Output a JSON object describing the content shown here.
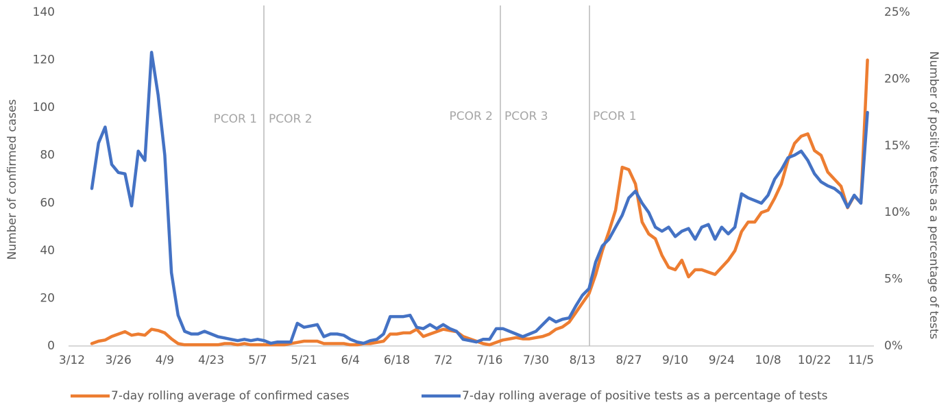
{
  "chart_data": {
    "type": "line",
    "y_label": "Number of confirmed cases",
    "y2_label": "Number of positive tests as a percentage of tests",
    "categories": [
      "3/12",
      null,
      null,
      null,
      null,
      null,
      null,
      "3/26",
      null,
      null,
      null,
      null,
      null,
      null,
      "4/9",
      null,
      null,
      null,
      null,
      null,
      null,
      "4/23",
      null,
      null,
      null,
      null,
      null,
      null,
      "5/7",
      null,
      null,
      null,
      null,
      null,
      null,
      "5/21",
      null,
      null,
      null,
      null,
      null,
      null,
      "6/4",
      null,
      null,
      null,
      null,
      null,
      null,
      "6/18",
      null,
      null,
      null,
      null,
      null,
      null,
      "7/2",
      null,
      null,
      null,
      null,
      null,
      null,
      "7/16",
      null,
      null,
      null,
      null,
      null,
      null,
      "7/30",
      null,
      null,
      null,
      null,
      null,
      null,
      "8/13",
      null,
      null,
      null,
      null,
      null,
      null,
      "8/27",
      null,
      null,
      null,
      null,
      null,
      null,
      "9/10",
      null,
      null,
      null,
      null,
      null,
      null,
      "9/24",
      null,
      null,
      null,
      null,
      null,
      null,
      "10/8",
      null,
      null,
      null,
      null,
      null,
      null,
      "10/22",
      null,
      null,
      null,
      null,
      null,
      null,
      "11/5",
      null,
      null
    ],
    "series": [
      {
        "name": "7-day rolling average of confirmed cases",
        "color": "#ed7d31",
        "axis": "y",
        "values": [
          null,
          null,
          null,
          1,
          2,
          2.5,
          4,
          5,
          6,
          4.5,
          5,
          4.5,
          7,
          6.5,
          5.5,
          3,
          1,
          0.5,
          0.5,
          0.5,
          0.5,
          0.5,
          0.5,
          1,
          1,
          0.5,
          1,
          0.5,
          0.5,
          0.5,
          0.5,
          0.5,
          0.5,
          1,
          1.5,
          2,
          2,
          2,
          1,
          1,
          1,
          1,
          0.5,
          0.5,
          1,
          1,
          1.5,
          2,
          5,
          5,
          5.5,
          5.5,
          7,
          4,
          5,
          6,
          7,
          6.5,
          6,
          4,
          3,
          2,
          1,
          0.5,
          1.5,
          2.5,
          3,
          3.5,
          3,
          3,
          3.5,
          4,
          5,
          7,
          8,
          10,
          14,
          18,
          22,
          30,
          40,
          48,
          57,
          75,
          74,
          68,
          52,
          47,
          45,
          38,
          33,
          32,
          36,
          29,
          32,
          32,
          31,
          30,
          33,
          36,
          40,
          48,
          52,
          52,
          56,
          57,
          62,
          68,
          78,
          85,
          88,
          89,
          82,
          80,
          73,
          70,
          67,
          58,
          63,
          60,
          120,
          null
        ]
      },
      {
        "name": "7-day rolling average of positive tests as a percentage of tests",
        "color": "#4472c4",
        "axis": "y2",
        "values": [
          null,
          null,
          null,
          11.8,
          15.2,
          16.4,
          13.6,
          13.0,
          12.9,
          10.5,
          14.6,
          13.9,
          22.0,
          18.8,
          14.3,
          5.5,
          2.3,
          1.1,
          0.9,
          0.9,
          1.1,
          0.9,
          0.7,
          0.6,
          0.5,
          0.4,
          0.5,
          0.4,
          0.5,
          0.4,
          0.2,
          0.3,
          0.3,
          0.3,
          1.7,
          1.4,
          1.5,
          1.6,
          0.7,
          0.9,
          0.9,
          0.8,
          0.5,
          0.3,
          0.2,
          0.4,
          0.5,
          0.9,
          2.2,
          2.2,
          2.2,
          2.3,
          1.4,
          1.3,
          1.6,
          1.3,
          1.6,
          1.3,
          1.1,
          0.5,
          0.4,
          0.3,
          0.5,
          0.5,
          1.3,
          1.3,
          1.1,
          0.9,
          0.7,
          0.9,
          1.1,
          1.6,
          2.1,
          1.8,
          2.0,
          2.1,
          3.0,
          3.8,
          4.3,
          6.3,
          7.5,
          8.0,
          8.9,
          9.8,
          11.1,
          11.6,
          10.7,
          10.0,
          8.9,
          8.6,
          8.9,
          8.2,
          8.6,
          8.8,
          8.0,
          8.9,
          9.1,
          8.0,
          8.9,
          8.4,
          8.9,
          11.4,
          11.1,
          10.9,
          10.7,
          11.3,
          12.5,
          13.2,
          14.1,
          14.3,
          14.6,
          13.9,
          12.9,
          12.3,
          12.0,
          11.8,
          11.4,
          10.4,
          11.3,
          10.7,
          17.5,
          null
        ]
      }
    ],
    "ylim": [
      0,
      140
    ],
    "yticks": [
      0,
      20,
      40,
      60,
      80,
      100,
      120,
      140
    ],
    "y2lim": [
      0,
      25
    ],
    "y2ticks": [
      {
        "value": 0,
        "label": "0%"
      },
      {
        "value": 5,
        "label": "5%"
      },
      {
        "value": 10,
        "label": "10%"
      },
      {
        "value": 15,
        "label": "15%"
      },
      {
        "value": 20,
        "label": "20%"
      },
      {
        "value": 25,
        "label": "25%"
      }
    ],
    "annotations": [
      "PCOR 1",
      "PCOR 2",
      "PCOR 2",
      "PCOR 3",
      "PCOR 1"
    ],
    "grid": false
  }
}
